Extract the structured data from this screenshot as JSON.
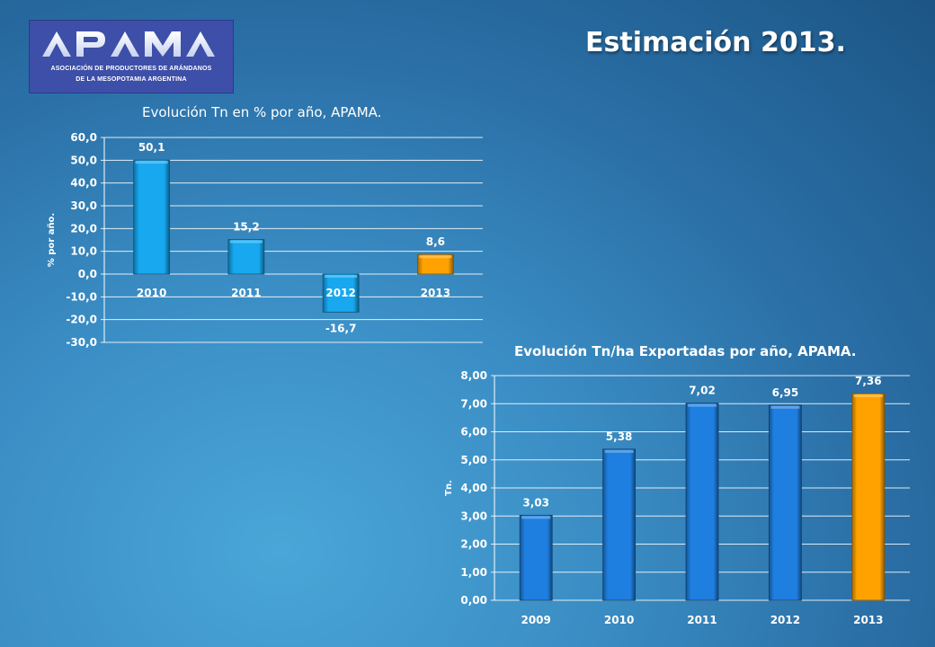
{
  "logo": {
    "name": "APAMA",
    "line1": "ASOCIACIÓN DE PRODUCTORES DE ARÁNDANOS",
    "line2": "DE LA MESOPOTAMIA ARGENTINA"
  },
  "page_title": "Estimación 2013.",
  "colors": {
    "blue_bar": "#1e7fe0",
    "cyan_bar": "#17a8f0",
    "orange_bar": "#ffa200",
    "gridline": "#ffffff"
  },
  "chart_data": [
    {
      "type": "bar",
      "title": "Evolución Tn en % por año, APAMA.",
      "ylabel": "% por año.",
      "xlabel": "",
      "categories": [
        "2010",
        "2011",
        "2012",
        "2013"
      ],
      "values": [
        50.1,
        15.2,
        -16.7,
        8.6
      ],
      "value_labels": [
        "50,1",
        "15,2",
        "-16,7",
        "8,6"
      ],
      "ylim": [
        -30,
        60
      ],
      "yticks": [
        60,
        50,
        40,
        30,
        20,
        10,
        0,
        -10,
        -20,
        -30
      ],
      "ytick_labels": [
        "60,0",
        "50,0",
        "40,0",
        "30,0",
        "20,0",
        "10,0",
        "0,0",
        "-10,0",
        "-20,0",
        "-30,0"
      ],
      "bar_colors": [
        "#17a8f0",
        "#17a8f0",
        "#17a8f0",
        "#ffa200"
      ],
      "grid": true,
      "legend": "none"
    },
    {
      "type": "bar",
      "title": "Evolución Tn/ha Exportadas por año, APAMA.",
      "ylabel": "Tn.",
      "xlabel": "",
      "categories": [
        "2009",
        "2010",
        "2011",
        "2012",
        "2013"
      ],
      "values": [
        3.03,
        5.38,
        7.02,
        6.95,
        7.36
      ],
      "value_labels": [
        "3,03",
        "5,38",
        "7,02",
        "6,95",
        "7,36"
      ],
      "ylim": [
        0,
        8
      ],
      "yticks": [
        8,
        7,
        6,
        5,
        4,
        3,
        2,
        1,
        0
      ],
      "ytick_labels": [
        "8,00",
        "7,00",
        "6,00",
        "5,00",
        "4,00",
        "3,00",
        "2,00",
        "1,00",
        "0,00"
      ],
      "bar_colors": [
        "#1e7fe0",
        "#1e7fe0",
        "#1e7fe0",
        "#1e7fe0",
        "#ffa200"
      ],
      "grid": true,
      "legend": "none"
    }
  ]
}
